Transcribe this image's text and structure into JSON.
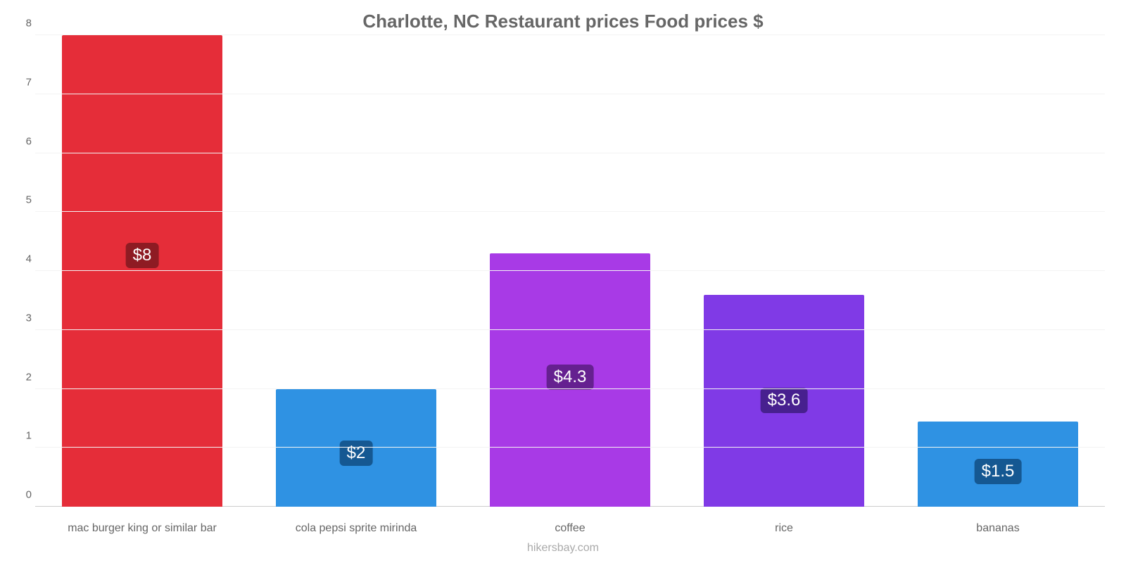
{
  "chart": {
    "type": "bar",
    "title": "Charlotte, NC Restaurant prices Food prices $",
    "title_fontsize": 26,
    "title_color": "#666666",
    "attribution": "hikersbay.com",
    "attribution_color": "#aaaaaa",
    "attribution_fontsize": 16,
    "background_color": "#ffffff",
    "grid_color": "#f3f3f3",
    "baseline_color": "#cccccc",
    "ylim": [
      0,
      8
    ],
    "yticks": [
      0,
      1,
      2,
      3,
      4,
      5,
      6,
      7,
      8
    ],
    "ytick_fontsize": 15,
    "ytick_color": "#666666",
    "xlabel_fontsize": 16,
    "xlabel_color": "#666666",
    "bar_width_pct": 75,
    "value_label_fontsize": 24,
    "bars": [
      {
        "category": "mac burger king or similar bar",
        "value": 8.0,
        "display": "$8",
        "color": "#e52d39",
        "label_bg": "#8e1b23"
      },
      {
        "category": "cola pepsi sprite mirinda",
        "value": 2.0,
        "display": "$2",
        "color": "#2f92e3",
        "label_bg": "#155892"
      },
      {
        "category": "coffee",
        "value": 4.3,
        "display": "$4.3",
        "color": "#a83ae6",
        "label_bg": "#652090"
      },
      {
        "category": "rice",
        "value": 3.6,
        "display": "$3.6",
        "color": "#803ae6",
        "label_bg": "#47208f"
      },
      {
        "category": "bananas",
        "value": 1.45,
        "display": "$1.5",
        "color": "#2f92e3",
        "label_bg": "#155892"
      }
    ]
  }
}
